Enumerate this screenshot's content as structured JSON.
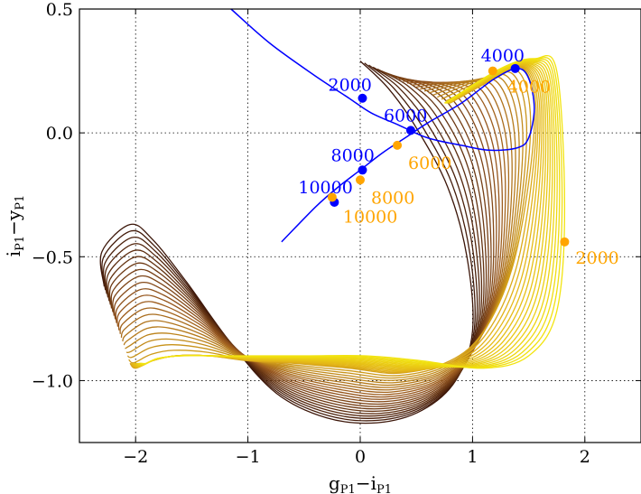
{
  "chart_data": {
    "type": "line",
    "title": "",
    "xlabel": "g_P1 - i_P1",
    "ylabel": "i_P1 - y_P1",
    "xlim": [
      -2.5,
      2.5
    ],
    "ylim": [
      -1.25,
      0.5
    ],
    "xticks": [
      -2,
      -1,
      0,
      1,
      2
    ],
    "yticks": [
      -1.0,
      -0.5,
      0.0,
      0.5
    ],
    "xtick_labels": [
      "−2",
      "−1",
      "0",
      "1",
      "2"
    ],
    "ytick_labels": [
      "−1.0",
      "−0.5",
      "0.0",
      "0.5"
    ],
    "grid": true,
    "colors": {
      "blue": "#0000ff",
      "orange": "#ffa500",
      "brown_dark": "#3b1508",
      "brown_mid": "#9b5a1e",
      "gold": "#e3b418",
      "yellow": "#f2e40f"
    },
    "family": {
      "description": "family of model color tracks, dark brown to yellow",
      "count": 36
    },
    "blue_curve": {
      "name": "blue track",
      "points": [
        [
          -1.15,
          0.5
        ],
        [
          -0.8,
          0.36
        ],
        [
          -0.4,
          0.23
        ],
        [
          -0.1,
          0.14
        ],
        [
          0.1,
          0.08
        ],
        [
          0.35,
          0.03
        ],
        [
          0.6,
          -0.02
        ],
        [
          0.9,
          -0.05
        ],
        [
          1.15,
          -0.07
        ],
        [
          1.4,
          -0.06
        ],
        [
          1.5,
          -0.02
        ],
        [
          1.55,
          0.1
        ],
        [
          1.5,
          0.22
        ],
        [
          1.4,
          0.26
        ],
        [
          1.2,
          0.22
        ],
        [
          0.9,
          0.12
        ],
        [
          0.6,
          0.04
        ],
        [
          0.4,
          -0.02
        ],
        [
          0.2,
          -0.08
        ],
        [
          0.0,
          -0.15
        ],
        [
          -0.2,
          -0.22
        ],
        [
          -0.4,
          -0.3
        ],
        [
          -0.7,
          -0.44
        ]
      ]
    },
    "blue_markers": [
      {
        "x": 0.02,
        "y": 0.14,
        "label": "2000"
      },
      {
        "x": 1.38,
        "y": 0.26,
        "label": "4000"
      },
      {
        "x": 0.45,
        "y": 0.01,
        "label": "6000"
      },
      {
        "x": 0.02,
        "y": -0.15,
        "label": "8000"
      },
      {
        "x": -0.23,
        "y": -0.28,
        "label": "10000"
      }
    ],
    "orange_markers": [
      {
        "x": 1.82,
        "y": -0.44,
        "label": "2000"
      },
      {
        "x": 1.18,
        "y": 0.25,
        "label": "4000"
      },
      {
        "x": 0.33,
        "y": -0.05,
        "label": "6000"
      },
      {
        "x": 0.0,
        "y": -0.19,
        "label": "8000"
      },
      {
        "x": -0.25,
        "y": -0.26,
        "label": "10000"
      }
    ]
  }
}
